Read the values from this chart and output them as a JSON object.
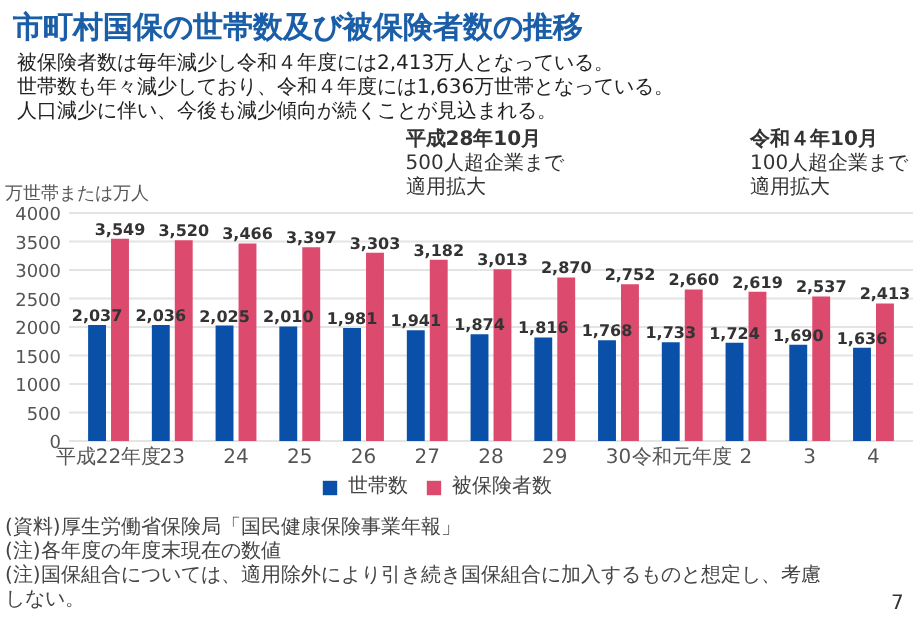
{
  "chart_data": {
    "type": "bar",
    "title": "市町村国保の世帯数及び被保険者数の推移",
    "ylabel": "万世帯または万人",
    "categories": [
      "平成22年度",
      "23",
      "24",
      "25",
      "26",
      "27",
      "28",
      "29",
      "30",
      "令和元年度",
      "2",
      "3",
      "4"
    ],
    "series": [
      {
        "name": "世帯数",
        "color": "#0a50a8",
        "values": [
          2037,
          2036,
          2025,
          2010,
          1981,
          1941,
          1874,
          1816,
          1768,
          1733,
          1724,
          1690,
          1636
        ],
        "value_labels": [
          "2,037",
          "2,036",
          "2,025",
          "2,010",
          "1,981",
          "1,941",
          "1,874",
          "1,816",
          "1,768",
          "1,733",
          "1,724",
          "1,690",
          "1,636"
        ]
      },
      {
        "name": "被保険者数",
        "color": "#dc4a6e",
        "values": [
          3549,
          3520,
          3466,
          3397,
          3303,
          3182,
          3013,
          2870,
          2752,
          2660,
          2619,
          2537,
          2413
        ],
        "value_labels": [
          "3,549",
          "3,520",
          "3,466",
          "3,397",
          "3,303",
          "3,182",
          "3,013",
          "2,870",
          "2,752",
          "2,660",
          "2,619",
          "2,537",
          "2,413"
        ]
      }
    ],
    "ylim": [
      0,
      4000
    ],
    "yticks": [
      0,
      500,
      1000,
      1500,
      2000,
      2500,
      3000,
      3500,
      4000
    ],
    "grid": "y",
    "legend": "bottom",
    "annotations": [
      "被保険者数は毎年減少し令和４年度には2,413万人となっている。",
      "世帯数も年々減少しており、令和４年度には1,636万世帯となっている。",
      "人口減少に伴い、今後も減少傾向が続くことが見込まれる。",
      "平成28年10月",
      "500人超企業まで",
      "適用拡大",
      "令和４年10月",
      "100人超企業まで",
      "適用拡大",
      "(資料)厚生労働省保険局「国民健康保険事業年報」",
      "(注)各年度の年度末現在の数値",
      "(注)国保組合については、適用除外により引き続き国保組合に加入するものと想定し、考慮しない。",
      "7"
    ]
  }
}
